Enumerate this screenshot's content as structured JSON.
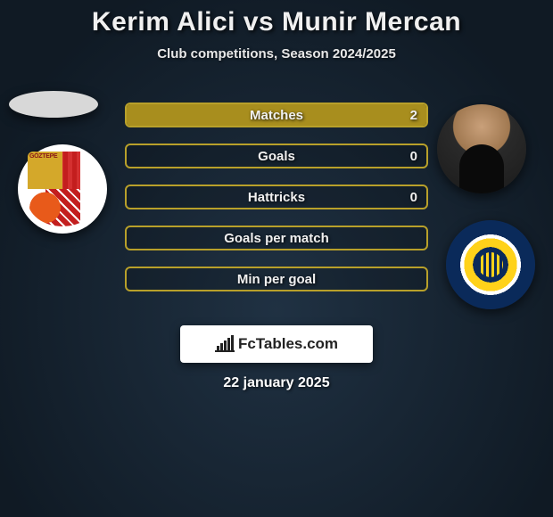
{
  "title": "Kerim Alici vs Munir Mercan",
  "subtitle": "Club competitions, Season 2024/2025",
  "date": "22 january 2025",
  "brand": {
    "text": "FcTables.com"
  },
  "colors": {
    "bar_border": "#b8a02a",
    "bar_fill": "#a88e1e",
    "bar_text": "#f0f0f0"
  },
  "stats": [
    {
      "label": "Matches",
      "value_right": "2",
      "fill_pct": 100
    },
    {
      "label": "Goals",
      "value_right": "0",
      "fill_pct": 0
    },
    {
      "label": "Hattricks",
      "value_right": "0",
      "fill_pct": 0
    },
    {
      "label": "Goals per match",
      "value_right": "",
      "fill_pct": 0
    },
    {
      "label": "Min per goal",
      "value_right": "",
      "fill_pct": 0
    }
  ],
  "players": {
    "left_club_text": "GÖZTEPE"
  }
}
